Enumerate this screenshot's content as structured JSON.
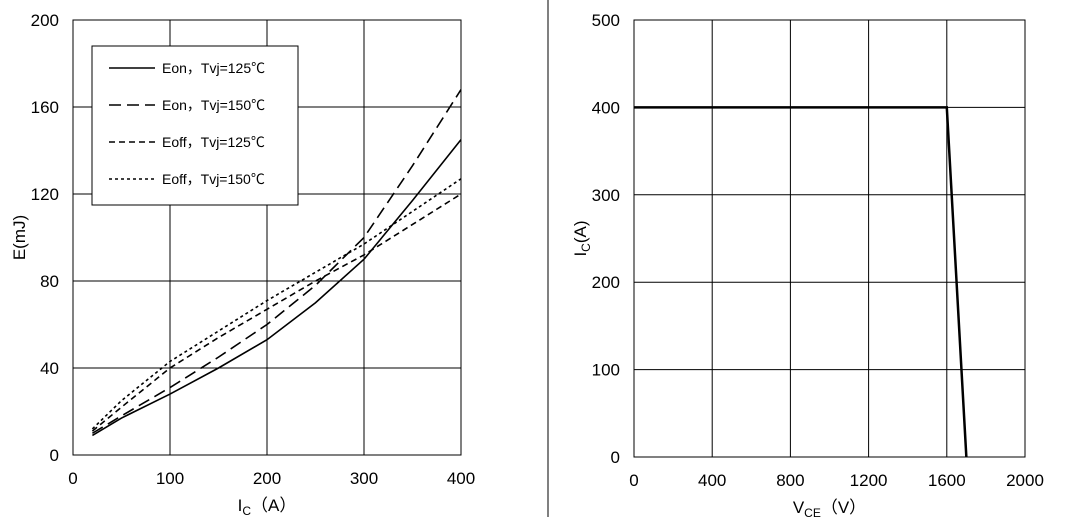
{
  "chart_data": [
    {
      "type": "line",
      "ylabel": [
        "E(mJ)"
      ],
      "xlabel": [
        "I",
        "C",
        "（A）"
      ],
      "x": [
        20,
        50,
        100,
        150,
        200,
        250,
        300,
        350,
        400
      ],
      "xlim": [
        0,
        400
      ],
      "xticks": [
        0,
        100,
        200,
        300,
        400
      ],
      "ylim": [
        0,
        200
      ],
      "yticks": [
        0,
        40,
        80,
        120,
        160,
        200
      ],
      "grid": true,
      "legend": "upper left",
      "series": [
        {
          "name": "Eon，Tvj=125℃",
          "color": "#000000",
          "dash": "none",
          "values": [
            9,
            17,
            28,
            40,
            53,
            70,
            90,
            117,
            145
          ]
        },
        {
          "name": "Eon，Tvj=150℃",
          "color": "#000000",
          "dash": "12 6",
          "values": [
            10,
            18,
            31,
            45,
            60,
            78,
            100,
            133,
            168
          ]
        },
        {
          "name": "Eoff，Tvj=125℃",
          "color": "#000000",
          "dash": "6 4",
          "values": [
            11,
            22,
            40,
            54,
            67,
            80,
            92,
            106,
            120
          ]
        },
        {
          "name": "Eoff，Tvj=150℃",
          "color": "#000000",
          "dash": "3 3",
          "values": [
            12,
            25,
            43,
            57,
            71,
            84,
            97,
            112,
            127
          ]
        }
      ]
    },
    {
      "type": "line",
      "ylabel": [
        "I",
        "C",
        "(A)"
      ],
      "xlabel": [
        "V",
        "CE",
        "（V）"
      ],
      "x": [
        0,
        1600,
        1700
      ],
      "xlim": [
        0,
        2000
      ],
      "xticks": [
        0,
        400,
        800,
        1200,
        1600,
        2000
      ],
      "ylim": [
        0,
        500
      ],
      "yticks": [
        0,
        100,
        200,
        300,
        400,
        500
      ],
      "grid": true,
      "series": [
        {
          "color": "#000000",
          "dash": "none",
          "values": [
            400,
            400,
            0
          ]
        }
      ]
    }
  ]
}
